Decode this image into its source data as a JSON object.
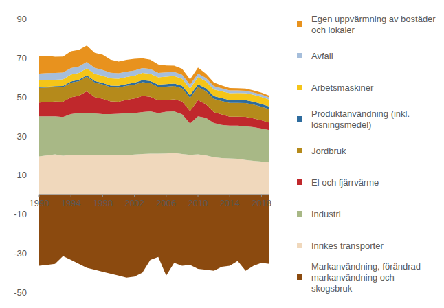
{
  "chart_data": {
    "type": "area",
    "stacked": true,
    "grid": false,
    "legend": "right",
    "x": [
      1990,
      1991,
      1992,
      1993,
      1994,
      1995,
      1996,
      1997,
      1998,
      1999,
      2000,
      2001,
      2002,
      2003,
      2004,
      2005,
      2006,
      2007,
      2008,
      2009,
      2010,
      2011,
      2012,
      2013,
      2014,
      2015,
      2016,
      2017,
      2018,
      2019
    ],
    "xlim": [
      1990,
      2019
    ],
    "xticks": [
      1990,
      1994,
      1998,
      2002,
      2006,
      2010,
      2014,
      2018
    ],
    "ylim": [
      -50,
      90
    ],
    "yticks": [
      90,
      70,
      50,
      30,
      10,
      -10,
      -30,
      -50
    ],
    "series": [
      {
        "name": "Egen uppvärmning av bostäder och lokaler",
        "color": "#e8921e",
        "values": [
          9.1,
          8.9,
          8.3,
          8.2,
          8.6,
          8.5,
          8.4,
          7.7,
          7.8,
          6.7,
          6.0,
          6.1,
          6.0,
          5.0,
          4.8,
          4.3,
          3.5,
          3.2,
          3.1,
          2.8,
          3.0,
          2.2,
          1.9,
          1.5,
          1.3,
          1.2,
          1.1,
          1.0,
          1.0,
          0.9
        ]
      },
      {
        "name": "Avfall",
        "color": "#a6bedb",
        "values": [
          3.6,
          3.6,
          3.5,
          3.5,
          3.4,
          3.3,
          3.2,
          3.1,
          3.0,
          2.9,
          2.8,
          2.7,
          2.6,
          2.5,
          2.4,
          2.3,
          2.2,
          2.1,
          2.0,
          1.9,
          1.8,
          1.7,
          1.6,
          1.5,
          1.4,
          1.3,
          1.3,
          1.2,
          1.2,
          1.1
        ]
      },
      {
        "name": "Arbetsmaskiner",
        "color": "#f5c518",
        "values": [
          3.2,
          3.3,
          3.3,
          3.4,
          3.5,
          3.5,
          3.6,
          3.6,
          3.6,
          3.7,
          3.6,
          3.6,
          3.6,
          3.7,
          3.7,
          3.7,
          3.8,
          3.8,
          3.6,
          3.4,
          3.7,
          3.6,
          3.5,
          3.5,
          3.5,
          3.6,
          3.6,
          3.6,
          3.6,
          3.5
        ]
      },
      {
        "name": "Produktanvändning (inkl. lösningsmedel)",
        "color": "#2e6c9e",
        "values": [
          0.5,
          0.5,
          0.5,
          0.6,
          0.6,
          0.7,
          0.7,
          0.8,
          0.8,
          0.8,
          0.9,
          0.9,
          1.0,
          1.0,
          1.1,
          1.2,
          1.3,
          1.3,
          1.3,
          1.3,
          1.4,
          1.4,
          1.4,
          1.5,
          1.5,
          1.5,
          1.5,
          1.5,
          1.4,
          1.4
        ]
      },
      {
        "name": "Jordbruk",
        "color": "#b58a1b",
        "values": [
          7.6,
          7.4,
          7.4,
          7.5,
          7.5,
          7.5,
          7.5,
          7.5,
          7.4,
          7.3,
          7.3,
          7.2,
          7.1,
          7.1,
          7.0,
          6.9,
          6.9,
          6.8,
          6.8,
          6.8,
          6.8,
          6.8,
          6.8,
          6.9,
          7.0,
          7.0,
          7.0,
          7.0,
          7.0,
          6.9
        ]
      },
      {
        "name": "El och fjärrvärme",
        "color": "#c0282c",
        "values": [
          7.0,
          7.3,
          7.5,
          7.8,
          8.6,
          8.8,
          11.0,
          8.3,
          7.8,
          6.5,
          6.1,
          6.8,
          7.5,
          8.2,
          7.5,
          6.5,
          6.0,
          6.2,
          6.5,
          6.4,
          8.2,
          6.9,
          5.6,
          5.3,
          4.6,
          4.6,
          4.8,
          4.5,
          4.2,
          3.8
        ]
      },
      {
        "name": "Industri",
        "color": "#a8b886",
        "values": [
          20.5,
          20.0,
          19.5,
          19.8,
          20.8,
          21.5,
          21.8,
          21.5,
          21.0,
          20.8,
          21.3,
          21.5,
          21.2,
          21.5,
          21.6,
          20.7,
          21.3,
          21.2,
          20.3,
          16.0,
          19.5,
          19.2,
          17.5,
          17.0,
          16.8,
          17.0,
          17.3,
          17.2,
          16.9,
          16.5
        ]
      },
      {
        "name": "Inrikes transporter",
        "color": "#f0d8bc",
        "values": [
          19.5,
          20.0,
          20.5,
          19.8,
          20.3,
          20.2,
          20.0,
          20.0,
          20.1,
          20.3,
          20.0,
          20.1,
          20.4,
          20.7,
          20.9,
          20.9,
          21.0,
          21.3,
          20.7,
          20.3,
          20.5,
          20.0,
          19.0,
          18.6,
          18.4,
          18.2,
          17.6,
          17.2,
          16.8,
          16.4
        ]
      },
      {
        "name": "Markanvändning, förändrad markanvändning och skogsbruk",
        "color": "#8b4a0f",
        "values": [
          -36.5,
          -36,
          -35.5,
          -31.5,
          -33.5,
          -35.5,
          -37.5,
          -38.5,
          -39.5,
          -40.5,
          -41.5,
          -42.5,
          -42,
          -40,
          -33.5,
          -32,
          -41.5,
          -35,
          -36.5,
          -36,
          -38,
          -38.5,
          -39,
          -37,
          -36.5,
          -34,
          -39,
          -36.5,
          -35,
          -35.5
        ]
      }
    ]
  }
}
